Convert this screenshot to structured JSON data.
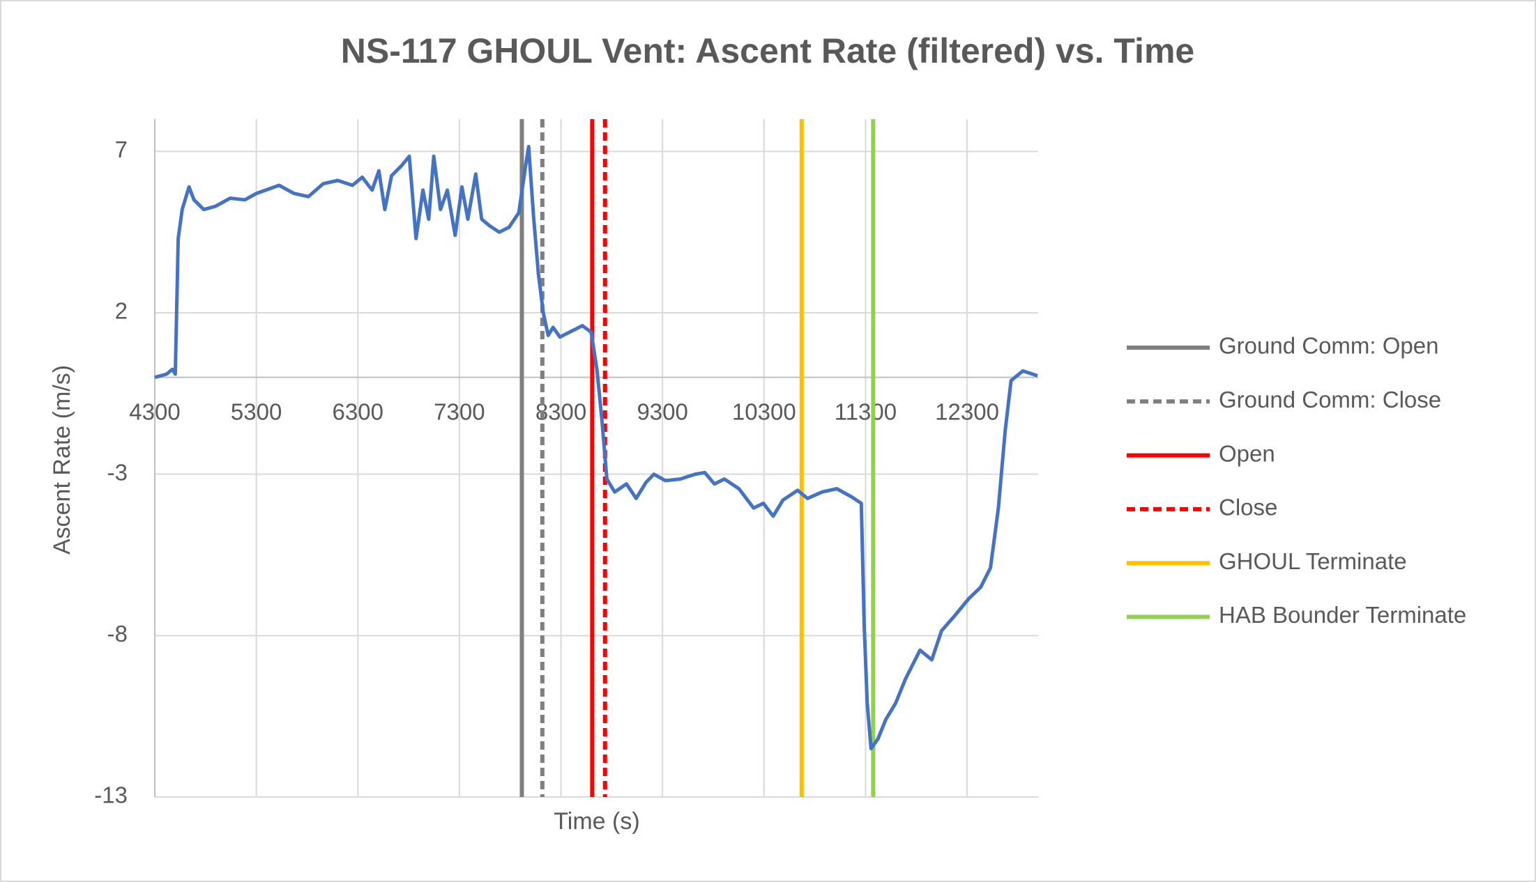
{
  "chart_data": {
    "type": "line",
    "title": "NS-117 GHOUL Vent: Ascent Rate (filtered) vs. Time",
    "x_label": "Time (s)",
    "y_label": "Ascent Rate (m/s)",
    "color": "#4472c4",
    "x": [
      4300,
      4416,
      4473,
      4502,
      4531,
      4570,
      4637,
      4686,
      4782,
      4898,
      5042,
      5187,
      5302,
      5524,
      5669,
      5813,
      5958,
      6102,
      6247,
      6343,
      6440,
      6507,
      6565,
      6632,
      6728,
      6806,
      6873,
      6941,
      6998,
      7047,
      7114,
      7181,
      7258,
      7325,
      7383,
      7461,
      7519,
      7596,
      7692,
      7789,
      7885,
      7952,
      7982,
      8030,
      8078,
      8126,
      8174,
      8222,
      8290,
      8415,
      8511,
      8598,
      8656,
      8704,
      8752,
      8829,
      8945,
      9041,
      9138,
      9215,
      9330,
      9475,
      9620,
      9716,
      9812,
      9909,
      10053,
      10198,
      10294,
      10390,
      10487,
      10631,
      10728,
      10872,
      11017,
      11161,
      11258,
      11287,
      11316,
      11354,
      11422,
      11499,
      11595,
      11692,
      11836,
      11952,
      12048,
      12174,
      12318,
      12434,
      12530,
      12608,
      12675,
      12733,
      12849,
      12994
    ],
    "values": [
      0,
      0.1,
      0.25,
      0.1,
      4.3,
      5.2,
      5.9,
      5.5,
      5.2,
      5.3,
      5.55,
      5.5,
      5.7,
      5.95,
      5.7,
      5.6,
      6.0,
      6.1,
      5.95,
      6.2,
      5.8,
      6.4,
      5.2,
      6.25,
      6.55,
      6.85,
      4.3,
      5.8,
      4.9,
      6.85,
      5.2,
      5.8,
      4.4,
      5.9,
      4.9,
      6.3,
      4.9,
      4.7,
      4.5,
      4.65,
      5.1,
      6.55,
      7.15,
      5.0,
      3.2,
      2.0,
      1.3,
      1.55,
      1.25,
      1.45,
      1.6,
      1.4,
      0.2,
      -1.35,
      -3.15,
      -3.55,
      -3.3,
      -3.75,
      -3.25,
      -3.0,
      -3.2,
      -3.15,
      -3.0,
      -2.95,
      -3.3,
      -3.15,
      -3.45,
      -4.05,
      -3.9,
      -4.3,
      -3.8,
      -3.5,
      -3.75,
      -3.55,
      -3.45,
      -3.7,
      -3.9,
      -7.7,
      -10.1,
      -11.5,
      -11.2,
      -10.6,
      -10.1,
      -9.35,
      -8.45,
      -8.75,
      -7.85,
      -7.4,
      -6.85,
      -6.5,
      -5.9,
      -4.05,
      -1.65,
      -0.1,
      0.2,
      0.05
    ],
    "markers": [
      {
        "name": "Ground Comm: Open",
        "color": "#7f7f7f",
        "x": 7915,
        "dash": false
      },
      {
        "name": "Ground Comm: Close",
        "color": "#7f7f7f",
        "x": 8117,
        "dash": true
      },
      {
        "name": "Open",
        "color": "#ff0000",
        "x": 8608,
        "dash": false
      },
      {
        "name": "Close",
        "color": "#ff0000",
        "x": 8734,
        "dash": true
      },
      {
        "name": "GHOUL Terminate",
        "color": "#ffc000",
        "x": 10671,
        "dash": false
      },
      {
        "name": "HAB Bounder Terminate",
        "color": "#92d050",
        "x": 11375,
        "dash": false
      }
    ],
    "xlim": [
      4300,
      13000
    ],
    "xticks": [
      4300,
      5300,
      6300,
      7300,
      8300,
      9300,
      10300,
      11300,
      12300
    ],
    "ylim": [
      -13,
      8
    ],
    "yticks": [
      -13,
      -8,
      -3,
      2,
      7
    ],
    "grid": true,
    "legend": "right"
  }
}
